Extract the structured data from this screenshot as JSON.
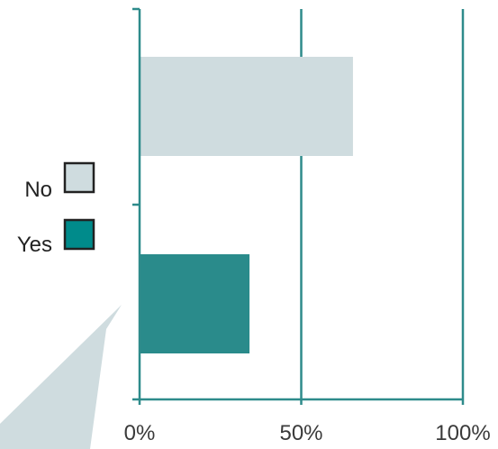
{
  "chart_data": {
    "type": "bar",
    "orientation": "horizontal",
    "categories": [
      "No",
      "Yes"
    ],
    "values": [
      66,
      34
    ],
    "unit": "%",
    "xlim": [
      0,
      100
    ],
    "xticks": [
      0,
      50,
      100
    ],
    "tick_labels": [
      "0%",
      "50%",
      "100%"
    ],
    "grid": true,
    "legend": {
      "placement": "left",
      "entries": [
        {
          "label": "No",
          "color": "#cfdcdf"
        },
        {
          "label": "Yes",
          "color": "#008b8b"
        }
      ]
    },
    "colors": {
      "no_bar": "#cfdcdf",
      "yes_bar": "#2a8b8b",
      "axis": "#2e8b8b",
      "callout": "#cfdcdf"
    }
  }
}
